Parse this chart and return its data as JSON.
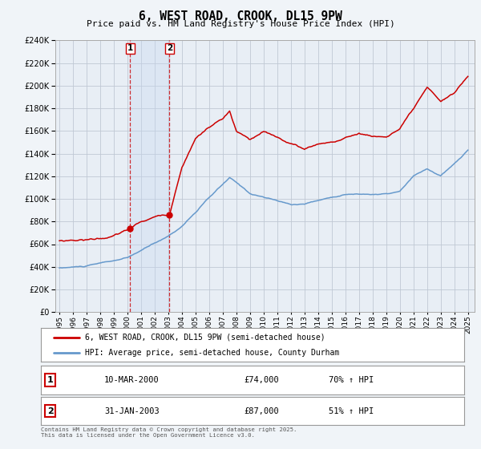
{
  "title": "6, WEST ROAD, CROOK, DL15 9PW",
  "subtitle": "Price paid vs. HM Land Registry's House Price Index (HPI)",
  "legend_line1": "6, WEST ROAD, CROOK, DL15 9PW (semi-detached house)",
  "legend_line2": "HPI: Average price, semi-detached house, County Durham",
  "transaction1_date": "10-MAR-2000",
  "transaction1_price": 74000,
  "transaction1_hpi": "70% ↑ HPI",
  "transaction2_date": "31-JAN-2003",
  "transaction2_price": 87000,
  "transaction2_hpi": "51% ↑ HPI",
  "footer": "Contains HM Land Registry data © Crown copyright and database right 2025.\nThis data is licensed under the Open Government Licence v3.0.",
  "hpi_color": "#6699cc",
  "price_color": "#cc0000",
  "highlight_color": "#ddeeff",
  "vline_color": "#cc0000",
  "background_color": "#f0f4f8",
  "plot_bg_color": "#e8eef5",
  "grid_color": "#c0c8d4",
  "ylim": [
    0,
    240000
  ],
  "ytick_step": 20000,
  "xlim_left": 1994.7,
  "xlim_right": 2025.5,
  "transaction1_x": 2000.19,
  "transaction2_x": 2003.08
}
